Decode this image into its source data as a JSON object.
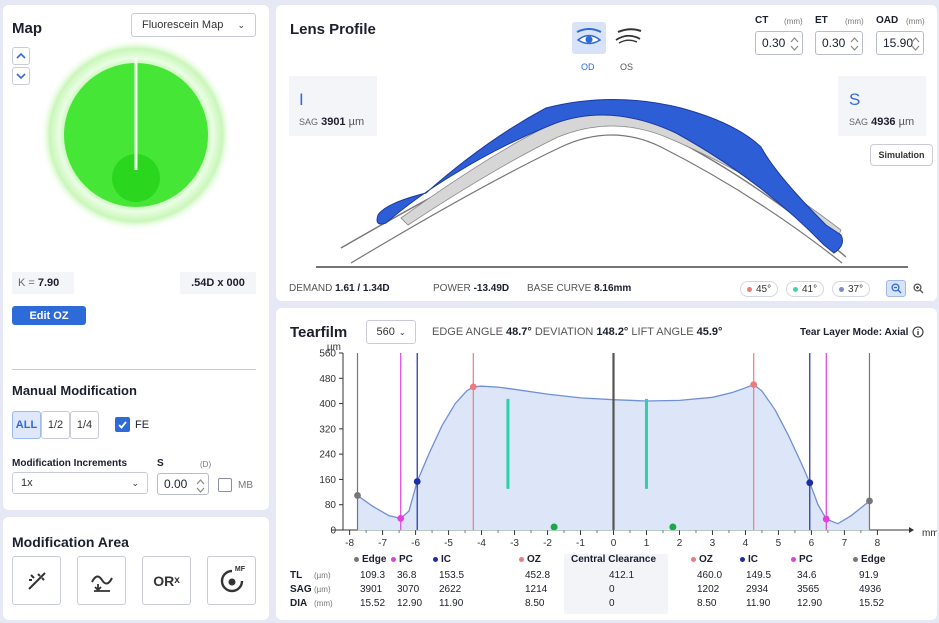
{
  "map": {
    "title": "Map",
    "dropdown": "Fluorescein Map",
    "k_label": "K =",
    "k_value": "7.90",
    "cyl": ".54D x 000",
    "edit_oz": "Edit OZ"
  },
  "manual": {
    "title": "Manual Modification",
    "seg": [
      "ALL",
      "1/2",
      "1/4"
    ],
    "fe_label": "FE",
    "incr_label": "Modification Increments",
    "incr_value": "1x",
    "s_label": "S",
    "s_unit": "(D)",
    "s_value": "0.00",
    "mb_label": "MB"
  },
  "mod_area": {
    "title": "Modification Area",
    "tools": [
      "wand",
      "curve-adjust",
      "ORx",
      "MF"
    ],
    "orx_text": "OR",
    "orx_sub": "x",
    "mf_text": "MF"
  },
  "lens": {
    "title": "Lens Profile",
    "od": "OD",
    "os": "OS",
    "ct_label": "CT",
    "ct_unit": "(mm)",
    "ct_value": "0.30",
    "et_label": "ET",
    "et_unit": "(mm)",
    "et_value": "0.30",
    "oad_label": "OAD",
    "oad_unit": "(mm)",
    "oad_value": "15.90",
    "left_letter": "I",
    "left_sag_label": "SAG",
    "left_sag_value": "3901",
    "left_sag_unit": "µm",
    "right_letter": "S",
    "right_sag_label": "SAG",
    "right_sag_value": "4936",
    "right_sag_unit": "µm",
    "simulation": "Simulation",
    "demand_label": "DEMAND",
    "demand_value": "1.61 / 1.34D",
    "power_label": "POWER",
    "power_value": "-13.49D",
    "bc_label": "BASE CURVE",
    "bc_value": "8.16mm",
    "angles": [
      {
        "value": "45°",
        "color": "#f07a7a"
      },
      {
        "value": "41°",
        "color": "#3fd3b0"
      },
      {
        "value": "37°",
        "color": "#7c8cc8"
      }
    ]
  },
  "tearfilm": {
    "title": "Tearfilm",
    "dropdown": "560",
    "edge_angle_label": "EDGE ANGLE",
    "edge_angle_value": "48.7°",
    "deviation_label": "DEVIATION",
    "deviation_value": "148.2°",
    "lift_angle_label": "LIFT ANGLE",
    "lift_angle_value": "45.9°",
    "mode": "Tear Layer Mode: Axial",
    "unit_y": "µm",
    "unit_x": "mm",
    "table": {
      "row_labels": [
        "TL",
        "SAG",
        "DIA"
      ],
      "row_units": [
        "(µm)",
        "(µm)",
        "(mm)"
      ],
      "columns": [
        {
          "name": "Edge",
          "color": "#777777",
          "values": [
            "109.3",
            "3901",
            "15.52"
          ]
        },
        {
          "name": "PC",
          "color": "#e040e0",
          "values": [
            "36.8",
            "3070",
            "12.90"
          ]
        },
        {
          "name": "IC",
          "color": "#1a2fa8",
          "values": [
            "153.5",
            "2622",
            "11.90"
          ]
        },
        {
          "name": "OZ",
          "color": "#f07a7a",
          "values": [
            "452.8",
            "1214",
            "8.50"
          ]
        },
        {
          "name": "Central Clearance",
          "color": "",
          "values": [
            "412.1",
            "0",
            "0"
          ]
        },
        {
          "name": "OZ",
          "color": "#f07a7a",
          "values": [
            "460.0",
            "1202",
            "8.50"
          ]
        },
        {
          "name": "IC",
          "color": "#1a2fa8",
          "values": [
            "149.5",
            "2934",
            "11.90"
          ]
        },
        {
          "name": "PC",
          "color": "#e040e0",
          "values": [
            "34.6",
            "3565",
            "12.90"
          ]
        },
        {
          "name": "Edge",
          "color": "#777777",
          "values": [
            "91.9",
            "4936",
            "15.52"
          ]
        }
      ]
    }
  },
  "chart_data": {
    "type": "area",
    "xlabel": "mm",
    "ylabel": "µm",
    "xlim": [
      -8.2,
      8.2
    ],
    "ylim": [
      0,
      560
    ],
    "xticks": [
      -8,
      -7,
      -6,
      -5,
      -4,
      -3,
      -2,
      -1,
      0,
      1,
      2,
      3,
      4,
      5,
      6,
      7,
      8
    ],
    "yticks": [
      0,
      80,
      160,
      240,
      320,
      400,
      480,
      560
    ],
    "series": [
      {
        "x": [
          -7.76,
          -7.3,
          -6.8,
          -6.45,
          -6.2,
          -5.95,
          -5.6,
          -5.2,
          -4.8,
          -4.45,
          -4.25,
          -4.0,
          -3.5,
          -3.0,
          -2.0,
          -1.0,
          0,
          1.0,
          2.0,
          3.0,
          3.6,
          4.0,
          4.25,
          4.5,
          4.9,
          5.3,
          5.7,
          5.95,
          6.2,
          6.45,
          6.8,
          7.2,
          7.76
        ],
        "y": [
          109.3,
          75,
          45,
          36.8,
          60,
          153.5,
          240,
          330,
          400,
          440,
          452.8,
          455,
          452,
          445,
          430,
          418,
          412.1,
          408,
          410,
          420,
          435,
          450,
          460,
          440,
          380,
          300,
          210,
          149.5,
          80,
          34.6,
          20,
          45,
          91.9
        ]
      }
    ],
    "markers": [
      {
        "x": -7.76,
        "y": 109.3,
        "color": "#777777"
      },
      {
        "x": -6.45,
        "y": 36.8,
        "color": "#e040e0"
      },
      {
        "x": -5.95,
        "y": 153.5,
        "color": "#1a2fa8"
      },
      {
        "x": -4.25,
        "y": 452.8,
        "color": "#f07a7a"
      },
      {
        "x": 4.25,
        "y": 460.0,
        "color": "#f07a7a"
      },
      {
        "x": 5.95,
        "y": 149.5,
        "color": "#1a2fa8"
      },
      {
        "x": 6.45,
        "y": 34.6,
        "color": "#e040e0"
      },
      {
        "x": 7.76,
        "y": 91.9,
        "color": "#777777"
      }
    ],
    "vlines": [
      {
        "x": -7.76,
        "color": "#777777"
      },
      {
        "x": -6.45,
        "color": "#e040e0"
      },
      {
        "x": -5.95,
        "color": "#1a2fa8"
      },
      {
        "x": -4.25,
        "color": "#f07a7a"
      },
      {
        "x": 0,
        "color": "#555555"
      },
      {
        "x": 4.25,
        "color": "#f07a7a"
      },
      {
        "x": 5.95,
        "color": "#1a2fa8"
      },
      {
        "x": 6.45,
        "color": "#e040e0"
      },
      {
        "x": 7.76,
        "color": "#777777"
      }
    ],
    "teal_bars": [
      {
        "x": -3.2,
        "y0": 130,
        "y1": 415
      },
      {
        "x": 1.0,
        "y0": 130,
        "y1": 415
      }
    ],
    "green_dots": [
      -1.8,
      1.8
    ]
  }
}
